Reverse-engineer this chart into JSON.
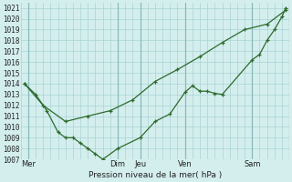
{
  "xlabel": "Pression niveau de la mer( hPa )",
  "ylim": [
    1007,
    1021.5
  ],
  "xlim": [
    0,
    36
  ],
  "yticks": [
    1007,
    1008,
    1009,
    1010,
    1011,
    1012,
    1013,
    1014,
    1015,
    1016,
    1017,
    1018,
    1019,
    1020,
    1021
  ],
  "xtick_positions": [
    1,
    13,
    16,
    22,
    31,
    36
  ],
  "xtick_labels": [
    "Mer",
    "Dim",
    "Jeu",
    "Ven",
    "Sam",
    ""
  ],
  "vline_positions": [
    1,
    13,
    16,
    22,
    31,
    36
  ],
  "bg_color": "#d4eeee",
  "line_color": "#2d6b2d",
  "grid_color": "#aad4d4",
  "line1_x": [
    0.5,
    2,
    3.5,
    5,
    6,
    7,
    8,
    9,
    10,
    11,
    13,
    16,
    18,
    20,
    22,
    23,
    24,
    25,
    26,
    27,
    31,
    32,
    33,
    34,
    35,
    35.5
  ],
  "line1_y": [
    1014,
    1013,
    1011.5,
    1009.5,
    1009,
    1009,
    1008.5,
    1008,
    1007.5,
    1007,
    1008,
    1009,
    1010.5,
    1011.2,
    1013.2,
    1013.8,
    1013.3,
    1013.3,
    1013.1,
    1013,
    1016.2,
    1016.7,
    1018,
    1019,
    1020.2,
    1021
  ],
  "line2_x": [
    0.5,
    3,
    6,
    9,
    12,
    15,
    18,
    21,
    24,
    27,
    30,
    33,
    35.5
  ],
  "line2_y": [
    1014,
    1012,
    1010.5,
    1011,
    1011.5,
    1012.5,
    1014.2,
    1015.3,
    1016.5,
    1017.8,
    1019,
    1019.5,
    1020.8
  ]
}
